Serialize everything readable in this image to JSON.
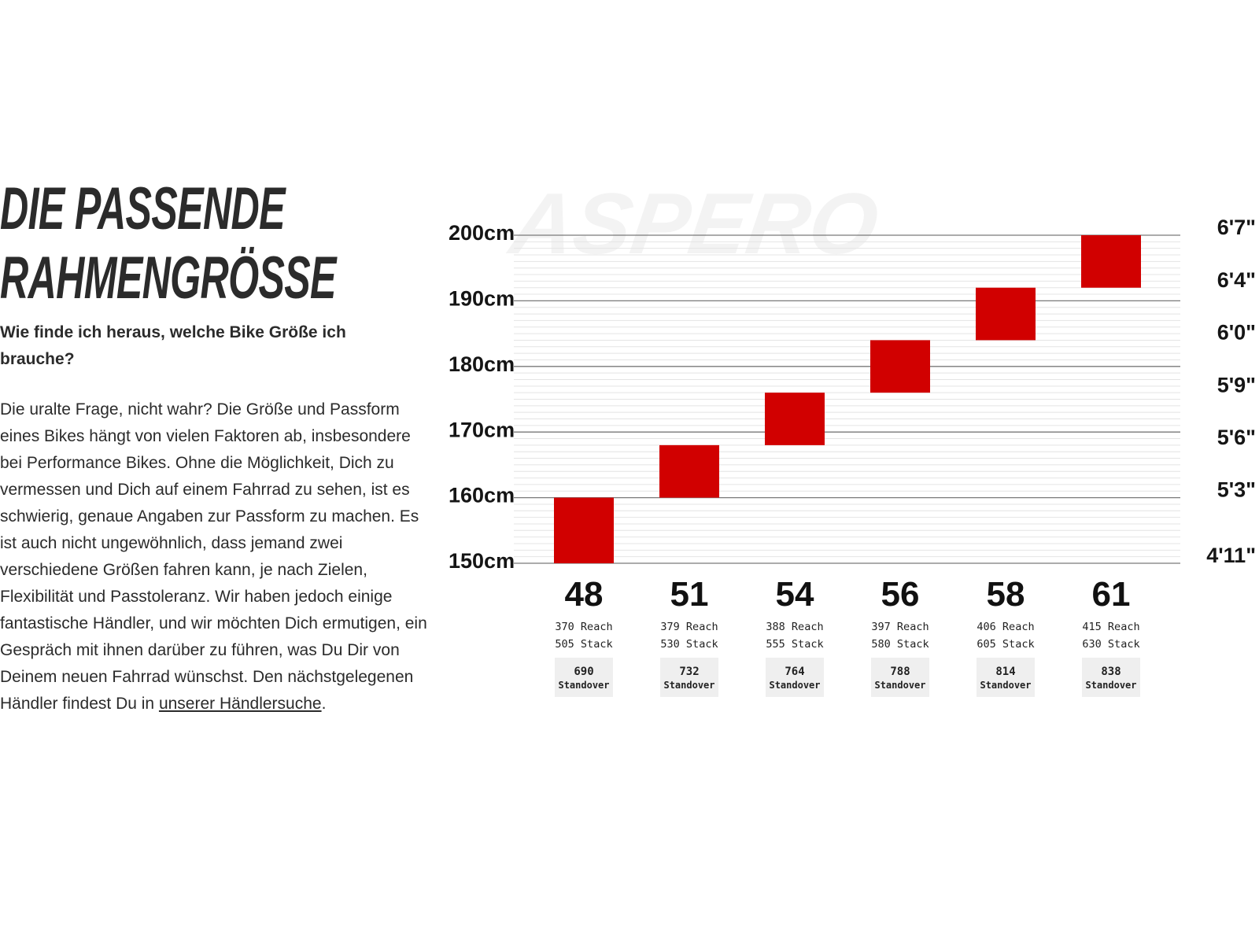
{
  "heading": {
    "title_line1": "Die passende",
    "title_line2": "Rahmengrösse",
    "subtitle": "Wie finde ich heraus, welche Bike Größe ich brauche?",
    "body": "Die uralte Frage, nicht wahr? Die Größe und Passform eines Bikes hängt von vielen Faktoren ab, insbesondere bei Performance Bikes. Ohne die Möglichkeit, Dich zu vermessen und Dich auf einem Fahrrad zu sehen, ist es schwierig, genaue Angaben zur Passform zu machen. Es ist auch nicht ungewöhnlich, dass jemand zwei verschiedene Größen fahren kann, je nach Zielen, Flexibilität und Passtoleranz. Wir haben jedoch einige fantastische Händler, und wir möchten Dich ermutigen, ein Gespräch mit ihnen darüber zu führen, was Du Dir von Deinem neuen Fahrrad wünschst. Den nächstgelegenen Händler findest Du in",
    "link_text": "unserer Händlersuche",
    "body_end": "."
  },
  "chart_data": {
    "type": "bar",
    "watermark": "ASPERO",
    "y_unit": "cm",
    "ylim": [
      150,
      200
    ],
    "left_ticks": [
      {
        "value": 200,
        "label": "200cm"
      },
      {
        "value": 190,
        "label": "190cm"
      },
      {
        "value": 180,
        "label": "180cm"
      },
      {
        "value": 170,
        "label": "170cm"
      },
      {
        "value": 160,
        "label": "160cm"
      },
      {
        "value": 150,
        "label": "150cm"
      }
    ],
    "right_ticks": [
      {
        "value": 200,
        "label": "6'7\""
      },
      {
        "value": 192,
        "label": "6'4\""
      },
      {
        "value": 184,
        "label": "6'0\""
      },
      {
        "value": 176,
        "label": "5'9\""
      },
      {
        "value": 168,
        "label": "5'6\""
      },
      {
        "value": 160,
        "label": "5'3\""
      },
      {
        "value": 150,
        "label": "4'11\""
      }
    ],
    "categories": [
      "48",
      "51",
      "54",
      "56",
      "58",
      "61"
    ],
    "rider_height_ranges": [
      [
        150,
        160
      ],
      [
        160,
        168
      ],
      [
        168,
        176
      ],
      [
        176,
        184
      ],
      [
        184,
        192
      ],
      [
        192,
        200
      ]
    ],
    "reach": [
      "370 Reach",
      "379 Reach",
      "388 Reach",
      "397 Reach",
      "406 Reach",
      "415 Reach"
    ],
    "stack": [
      "505 Stack",
      "530 Stack",
      "555 Stack",
      "580 Stack",
      "605 Stack",
      "630 Stack"
    ],
    "standover": [
      "690",
      "732",
      "764",
      "788",
      "814",
      "838"
    ],
    "standover_label": "Standover",
    "bar_color": "#d10000",
    "grid": true
  }
}
